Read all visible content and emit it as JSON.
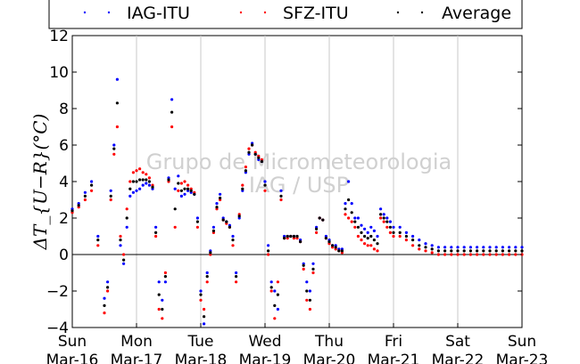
{
  "chart_data": {
    "type": "scatter",
    "ylabel": "ΔT_{U−R}(°C)",
    "ylim": [
      -4,
      12
    ],
    "yticks": [
      -4,
      -2,
      0,
      2,
      4,
      6,
      8,
      10,
      12
    ],
    "xlim": [
      "2015-03-16",
      "2015-03-23"
    ],
    "xticks": [
      {
        "day": "Sun",
        "date": "Mar-16"
      },
      {
        "day": "Mon",
        "date": "Mar-17"
      },
      {
        "day": "Tue",
        "date": "Mar-18"
      },
      {
        "day": "Wed",
        "date": "Mar-19"
      },
      {
        "day": "Thu",
        "date": "Mar-20"
      },
      {
        "day": "Fri",
        "date": "Mar-21"
      },
      {
        "day": "Sat",
        "date": "Mar-22"
      },
      {
        "day": "Sun",
        "date": "Mar-23"
      }
    ],
    "x_units": "days",
    "grid": "x",
    "zero_line": true,
    "legend_placement": "top",
    "watermark": [
      "Grupo de Micrometeorologia",
      "IAG / USP"
    ],
    "series": [
      {
        "name": "IAG-ITU",
        "color": "#0000ff",
        "x": [
          0,
          0.1,
          0.2,
          0.3,
          0.4,
          0.5,
          0.55,
          0.6,
          0.65,
          0.7,
          0.75,
          0.8,
          0.85,
          0.9,
          0.95,
          1,
          1.05,
          1.1,
          1.15,
          1.2,
          1.25,
          1.3,
          1.35,
          1.4,
          1.45,
          1.5,
          1.55,
          1.6,
          1.65,
          1.7,
          1.75,
          1.8,
          1.85,
          1.9,
          1.95,
          2,
          2.05,
          2.1,
          2.15,
          2.2,
          2.25,
          2.3,
          2.35,
          2.4,
          2.45,
          2.5,
          2.55,
          2.6,
          2.65,
          2.7,
          2.75,
          2.8,
          2.85,
          2.9,
          2.95,
          3,
          3.05,
          3.1,
          3.15,
          3.2,
          3.25,
          3.3,
          3.35,
          3.4,
          3.45,
          3.5,
          3.55,
          3.6,
          3.65,
          3.7,
          3.75,
          3.8,
          3.85,
          3.9,
          3.95,
          4,
          4.05,
          4.1,
          4.15,
          4.2,
          4.25,
          4.3,
          4.35,
          4.4,
          4.45,
          4.5,
          4.55,
          4.6,
          4.65,
          4.7,
          4.75,
          4.8,
          4.85,
          4.9,
          4.95,
          5,
          5.1,
          5.2,
          5.3,
          5.4,
          5.5,
          5.6,
          5.7,
          5.8,
          5.9,
          6,
          6.1,
          6.2,
          6.3,
          6.4,
          6.5,
          6.6,
          6.7,
          6.8,
          6.9,
          7
        ],
        "y": [
          2.5,
          2.8,
          3.4,
          4.0,
          1.0,
          -2.4,
          -1.5,
          3.5,
          6.0,
          9.6,
          0.5,
          -0.5,
          1.5,
          3.2,
          3.4,
          3.5,
          3.6,
          3.8,
          3.9,
          3.8,
          3.6,
          1.5,
          -1.5,
          -2.5,
          -1.5,
          4.2,
          8.5,
          3.6,
          4.3,
          3.2,
          3.3,
          3.5,
          3.4,
          3.3,
          2.0,
          -2.0,
          -3.8,
          -1.0,
          0.2,
          1.5,
          2.8,
          3.3,
          2.0,
          1.8,
          1.6,
          1.0,
          -1.0,
          2.0,
          3.5,
          4.5,
          5.5,
          6.1,
          5.5,
          5.2,
          5.1,
          4.0,
          0.5,
          -1.5,
          -2.0,
          -3.0,
          3.5,
          1.0,
          1.0,
          1.0,
          1.0,
          1.0,
          0.8,
          -0.5,
          -1.5,
          -2.0,
          -0.5,
          1.5,
          2.0,
          1.9,
          1.0,
          0.8,
          0.5,
          0.5,
          0.3,
          0.3,
          2.8,
          4.0,
          2.8,
          2.0,
          2.0,
          1.6,
          1.4,
          1.2,
          1.5,
          1.3,
          1.0,
          2.5,
          2.2,
          2.0,
          1.8,
          1.5,
          1.5,
          1.2,
          1.0,
          0.8,
          0.6,
          0.5,
          0.4,
          0.4,
          0.4,
          0.4,
          0.4,
          0.4,
          0.4,
          0.4,
          0.4,
          0.4,
          0.4,
          0.4,
          0.4,
          0.4
        ]
      },
      {
        "name": "SFZ-ITU",
        "color": "#ff0000",
        "x": [
          0,
          0.1,
          0.2,
          0.3,
          0.4,
          0.5,
          0.55,
          0.6,
          0.65,
          0.7,
          0.75,
          0.8,
          0.85,
          0.9,
          0.95,
          1,
          1.05,
          1.1,
          1.15,
          1.2,
          1.25,
          1.3,
          1.35,
          1.4,
          1.45,
          1.5,
          1.55,
          1.6,
          1.65,
          1.7,
          1.75,
          1.8,
          1.85,
          1.9,
          1.95,
          2,
          2.05,
          2.1,
          2.15,
          2.2,
          2.25,
          2.3,
          2.35,
          2.4,
          2.45,
          2.5,
          2.55,
          2.6,
          2.65,
          2.7,
          2.75,
          2.8,
          2.85,
          2.9,
          2.95,
          3,
          3.05,
          3.1,
          3.15,
          3.2,
          3.25,
          3.3,
          3.35,
          3.4,
          3.45,
          3.5,
          3.55,
          3.6,
          3.65,
          3.7,
          3.75,
          3.8,
          3.85,
          3.9,
          3.95,
          4,
          4.05,
          4.1,
          4.15,
          4.2,
          4.25,
          4.3,
          4.35,
          4.4,
          4.45,
          4.5,
          4.55,
          4.6,
          4.65,
          4.7,
          4.75,
          4.8,
          4.85,
          4.9,
          4.95,
          5,
          5.1,
          5.2,
          5.3,
          5.4,
          5.5,
          5.6,
          5.7,
          5.8,
          5.9,
          6,
          6.1,
          6.2,
          6.3,
          6.4,
          6.5,
          6.6,
          6.7,
          6.8,
          6.9,
          7
        ],
        "y": [
          2.3,
          2.6,
          3.0,
          3.5,
          0.5,
          -3.2,
          -2.0,
          3.0,
          5.5,
          7.0,
          1.0,
          0.0,
          2.5,
          4.0,
          4.5,
          4.6,
          4.7,
          4.5,
          4.4,
          4.2,
          3.8,
          1.0,
          -3.0,
          -3.5,
          -1.0,
          4.0,
          7.0,
          1.5,
          3.5,
          3.9,
          4.0,
          3.8,
          3.6,
          3.4,
          1.5,
          -2.5,
          -3.0,
          -1.5,
          0.0,
          1.2,
          2.5,
          3.0,
          1.9,
          1.7,
          1.5,
          0.5,
          -1.5,
          2.2,
          3.8,
          4.8,
          5.8,
          6.0,
          5.6,
          5.4,
          5.2,
          3.5,
          0.0,
          -2.0,
          -3.5,
          -1.5,
          3.0,
          0.9,
          0.9,
          1.0,
          0.9,
          0.9,
          0.7,
          -0.8,
          -2.5,
          -3.0,
          -1.0,
          1.2,
          2.0,
          1.9,
          0.9,
          0.6,
          0.4,
          0.3,
          0.2,
          0.1,
          2.2,
          2.0,
          1.8,
          1.5,
          1.0,
          0.8,
          0.6,
          0.5,
          0.5,
          0.3,
          0.2,
          2.0,
          1.8,
          1.5,
          1.2,
          1.0,
          1.0,
          0.8,
          0.5,
          0.3,
          0.2,
          0.1,
          0.0,
          0.0,
          0.0,
          0.0,
          0.0,
          0.0,
          0.0,
          0.0,
          0.0,
          0.0,
          0.0,
          0.0,
          0.0,
          0.0
        ]
      },
      {
        "name": "Average",
        "color": "#000000",
        "x": [
          0,
          0.1,
          0.2,
          0.3,
          0.4,
          0.5,
          0.55,
          0.6,
          0.65,
          0.7,
          0.75,
          0.8,
          0.85,
          0.9,
          0.95,
          1,
          1.05,
          1.1,
          1.15,
          1.2,
          1.25,
          1.3,
          1.35,
          1.4,
          1.45,
          1.5,
          1.55,
          1.6,
          1.65,
          1.7,
          1.75,
          1.8,
          1.85,
          1.9,
          1.95,
          2,
          2.05,
          2.1,
          2.15,
          2.2,
          2.25,
          2.3,
          2.35,
          2.4,
          2.45,
          2.5,
          2.55,
          2.6,
          2.65,
          2.7,
          2.75,
          2.8,
          2.85,
          2.9,
          2.95,
          3,
          3.05,
          3.1,
          3.15,
          3.2,
          3.25,
          3.3,
          3.35,
          3.4,
          3.45,
          3.5,
          3.55,
          3.6,
          3.65,
          3.7,
          3.75,
          3.8,
          3.85,
          3.9,
          3.95,
          4,
          4.05,
          4.1,
          4.15,
          4.2,
          4.25,
          4.3,
          4.35,
          4.4,
          4.45,
          4.5,
          4.55,
          4.6,
          4.65,
          4.7,
          4.75,
          4.8,
          4.85,
          4.9,
          4.95,
          5,
          5.1,
          5.2,
          5.3,
          5.4,
          5.5,
          5.6,
          5.7,
          5.8,
          5.9,
          6,
          6.1,
          6.2,
          6.3,
          6.4,
          6.5,
          6.6,
          6.7,
          6.8,
          6.9,
          7
        ],
        "y": [
          2.4,
          2.7,
          3.2,
          3.8,
          0.8,
          -2.8,
          -1.8,
          3.2,
          5.8,
          8.3,
          0.8,
          -0.3,
          2.0,
          3.6,
          4.0,
          4.0,
          4.1,
          4.1,
          4.1,
          4.0,
          3.7,
          1.2,
          -2.2,
          -3.0,
          -1.2,
          4.1,
          7.8,
          2.5,
          3.9,
          3.5,
          3.6,
          3.6,
          3.5,
          3.3,
          1.8,
          -2.2,
          -3.4,
          -1.2,
          0.1,
          1.3,
          2.6,
          3.1,
          1.9,
          1.8,
          1.5,
          0.8,
          -1.2,
          2.1,
          3.6,
          4.6,
          5.6,
          6.0,
          5.5,
          5.3,
          5.1,
          3.8,
          0.2,
          -1.8,
          -2.8,
          -2.2,
          3.2,
          0.9,
          1.0,
          1.0,
          1.0,
          1.0,
          0.7,
          -0.6,
          -2.0,
          -2.5,
          -0.8,
          1.4,
          2.0,
          1.9,
          0.9,
          0.7,
          0.5,
          0.4,
          0.2,
          0.2,
          2.5,
          3.0,
          2.3,
          1.8,
          1.5,
          1.2,
          1.0,
          0.9,
          1.0,
          0.8,
          0.6,
          2.2,
          2.0,
          1.8,
          1.5,
          1.2,
          1.2,
          1.0,
          0.8,
          0.5,
          0.4,
          0.3,
          0.2,
          0.2,
          0.2,
          0.2,
          0.2,
          0.2,
          0.2,
          0.2,
          0.2,
          0.2,
          0.2,
          0.2,
          0.2,
          0.2
        ]
      }
    ]
  }
}
